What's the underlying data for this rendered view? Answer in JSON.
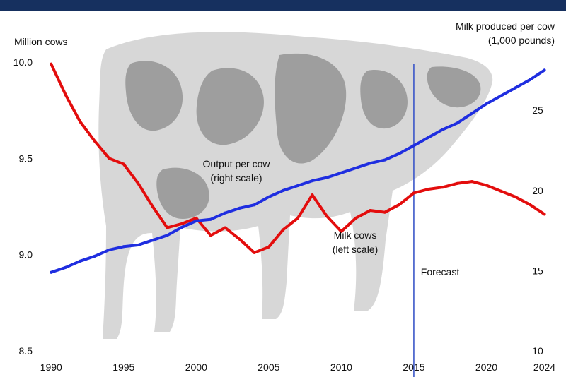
{
  "colors": {
    "banner": "#16305f",
    "cows_line": "#e30d0d",
    "output_line": "#1f2ee0",
    "forecast_line": "#3a56c8",
    "cow_silhouette": "#c9c9c9",
    "cow_spots": "#6f6f6f"
  },
  "chart_data": {
    "type": "line",
    "left_axis_title": "Million cows",
    "right_axis_title_line1": "Milk produced per cow",
    "right_axis_title_line2": "(1,000 pounds)",
    "xlim": [
      1989.5,
      2025
    ],
    "left_ylim": [
      8.5,
      10.0
    ],
    "right_ylim": [
      10,
      28
    ],
    "x_ticks": [
      1990,
      1995,
      2000,
      2005,
      2010,
      2015,
      2020,
      2024
    ],
    "x_tick_labels": [
      "1990",
      "1995",
      "2000",
      "2005",
      "2010",
      "2015",
      "2020",
      "2024"
    ],
    "left_ticks": [
      8.5,
      9.0,
      9.5,
      10.0
    ],
    "left_tick_labels": [
      "8.5",
      "9.0",
      "9.5",
      "10.0"
    ],
    "right_ticks": [
      10,
      15,
      20,
      25
    ],
    "right_tick_labels": [
      "10",
      "15",
      "20",
      "25"
    ],
    "forecast_year": 2015,
    "forecast_label": "Forecast",
    "series": [
      {
        "name_line1": "Milk cows",
        "name_line2": "(left scale)",
        "axis": "left",
        "x": [
          1990,
          1991,
          1992,
          1993,
          1994,
          1995,
          1996,
          1997,
          1998,
          1999,
          2000,
          2001,
          2002,
          2003,
          2004,
          2005,
          2006,
          2007,
          2008,
          2009,
          2010,
          2011,
          2012,
          2013,
          2014,
          2015,
          2016,
          2017,
          2018,
          2019,
          2020,
          2021,
          2022,
          2023,
          2024
        ],
        "values": [
          9.99,
          9.83,
          9.69,
          9.59,
          9.5,
          9.47,
          9.37,
          9.25,
          9.14,
          9.16,
          9.19,
          9.1,
          9.14,
          9.08,
          9.01,
          9.04,
          9.13,
          9.19,
          9.31,
          9.2,
          9.12,
          9.19,
          9.23,
          9.22,
          9.26,
          9.32,
          9.34,
          9.35,
          9.37,
          9.38,
          9.36,
          9.33,
          9.3,
          9.26,
          9.21
        ]
      },
      {
        "name_line1": "Output per cow",
        "name_line2": "(right scale)",
        "axis": "right",
        "x": [
          1990,
          1991,
          1992,
          1993,
          1994,
          1995,
          1996,
          1997,
          1998,
          1999,
          2000,
          2001,
          2002,
          2003,
          2004,
          2005,
          2006,
          2007,
          2008,
          2009,
          2010,
          2011,
          2012,
          2013,
          2014,
          2015,
          2016,
          2017,
          2018,
          2019,
          2020,
          2021,
          2022,
          2023,
          2024
        ],
        "values": [
          14.9,
          15.2,
          15.6,
          15.9,
          16.3,
          16.5,
          16.6,
          16.9,
          17.2,
          17.7,
          18.1,
          18.2,
          18.6,
          18.9,
          19.1,
          19.6,
          20.0,
          20.3,
          20.6,
          20.8,
          21.1,
          21.4,
          21.7,
          21.9,
          22.3,
          22.8,
          23.3,
          23.8,
          24.2,
          24.8,
          25.4,
          25.9,
          26.4,
          26.9,
          27.5
        ]
      }
    ]
  }
}
